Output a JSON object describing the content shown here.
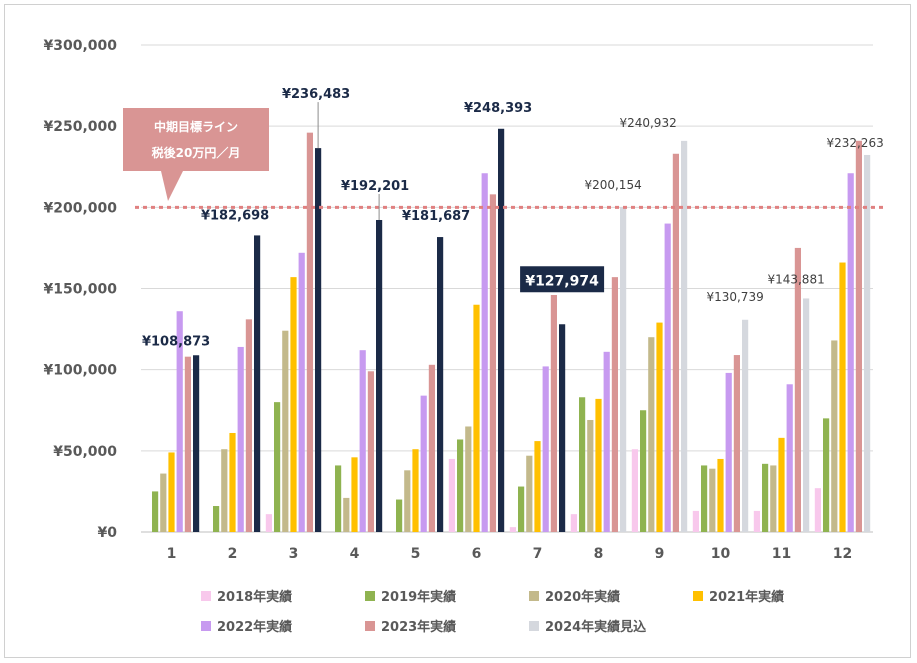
{
  "chart_data": {
    "type": "bar",
    "categories": [
      "1",
      "2",
      "3",
      "4",
      "5",
      "6",
      "7",
      "8",
      "9",
      "10",
      "11",
      "12"
    ],
    "ylim": [
      0,
      300000
    ],
    "yticks": [
      0,
      50000,
      100000,
      150000,
      200000,
      250000,
      300000
    ],
    "ytick_labels": [
      "¥0",
      "¥50,000",
      "¥100,000",
      "¥150,000",
      "¥200,000",
      "¥250,000",
      "¥300,000"
    ],
    "grid": true,
    "legend_position": "bottom",
    "series": [
      {
        "name": "2018年実績",
        "color": "#f8c8ec",
        "values": [
          0,
          0,
          11000,
          0,
          0,
          45000,
          3000,
          11000,
          51000,
          13000,
          13000,
          27000
        ]
      },
      {
        "name": "2019年実績",
        "color": "#8fb350",
        "values": [
          25000,
          16000,
          80000,
          41000,
          20000,
          57000,
          28000,
          83000,
          75000,
          41000,
          42000,
          70000
        ]
      },
      {
        "name": "2020年実績",
        "color": "#c3b98b",
        "values": [
          36000,
          51000,
          124000,
          21000,
          38000,
          65000,
          47000,
          69000,
          120000,
          39000,
          41000,
          118000
        ]
      },
      {
        "name": "2021年実績",
        "color": "#ffc000",
        "values": [
          49000,
          61000,
          157000,
          46000,
          51000,
          140000,
          56000,
          82000,
          129000,
          45000,
          58000,
          166000
        ]
      },
      {
        "name": "2022年実績",
        "color": "#c79af0",
        "values": [
          136000,
          114000,
          172000,
          112000,
          84000,
          221000,
          102000,
          111000,
          190000,
          98000,
          91000,
          221000
        ]
      },
      {
        "name": "2023年実績",
        "color": "#d99594",
        "values": [
          108000,
          131000,
          246000,
          99000,
          103000,
          208000,
          146000,
          157000,
          233000,
          109000,
          175000,
          241000
        ]
      },
      {
        "name": "2024年実績見込",
        "color": "#1b2a47",
        "values": [
          108873,
          182698,
          236483,
          192201,
          181687,
          248393,
          127974,
          200154,
          240932,
          130739,
          143881,
          232263
        ]
      }
    ],
    "series2024_colors": [
      "#1b2a47",
      "#1b2a47",
      "#1b2a47",
      "#1b2a47",
      "#1b2a47",
      "#1b2a47",
      "#1b2a47",
      "#d5d8de",
      "#d5d8de",
      "#d5d8de",
      "#d5d8de",
      "#d5d8de"
    ],
    "data_labels": [
      "¥108,873",
      "¥182,698",
      "¥236,483",
      "¥192,201",
      "¥181,687",
      "¥248,393",
      "¥127,974",
      "¥200,154",
      "¥240,932",
      "¥130,739",
      "¥143,881",
      "¥232,263"
    ],
    "highlight_month": "7",
    "target_line": {
      "value": 200000,
      "color": "#e08080"
    },
    "annotation": {
      "line1": "中期目標ライン",
      "line2": "税後20万円／月",
      "color": "#d99594"
    }
  }
}
